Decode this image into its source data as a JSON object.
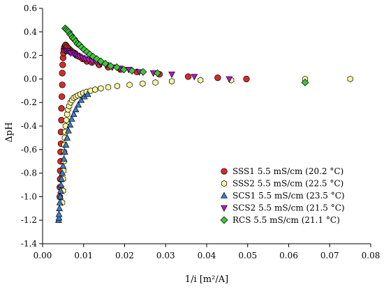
{
  "chart_data": {
    "type": "scatter",
    "title": "",
    "xlabel": "1/i [m²/A]",
    "ylabel": "ΔpH",
    "xlim": [
      0,
      0.08
    ],
    "ylim": [
      -1.4,
      0.6
    ],
    "xticks": [
      0,
      0.01,
      0.02,
      0.03,
      0.04,
      0.05,
      0.06,
      0.07,
      0.08
    ],
    "xtick_labels": [
      "0.00",
      "0.01",
      "0.02",
      "0.03",
      "0.04",
      "0.05",
      "0.06",
      "0.07",
      "0.08"
    ],
    "yticks": [
      -1.4,
      -1.2,
      -1.0,
      -0.8,
      -0.6,
      -0.4,
      -0.2,
      0.0,
      0.2,
      0.4,
      0.6
    ],
    "ytick_labels": [
      "-1.4",
      "-1.2",
      "-1.0",
      "-0.8",
      "-0.6",
      "-0.4",
      "-0.2",
      "0.0",
      "0.2",
      "0.4",
      "0.6"
    ],
    "grid": false,
    "legend_position": "bottom-right",
    "series": [
      {
        "name": "SSS1 5.5 mS/cm (20.2 °C)",
        "marker": "circle",
        "color": "#d62b27",
        "x": [
          0.0042,
          0.0042,
          0.0043,
          0.0043,
          0.0044,
          0.0044,
          0.0045,
          0.0045,
          0.0046,
          0.0046,
          0.0047,
          0.0048,
          0.0048,
          0.0049,
          0.005,
          0.0051,
          0.0052,
          0.0053,
          0.0055,
          0.0056,
          0.0058,
          0.006,
          0.0063,
          0.0066,
          0.0069,
          0.0073,
          0.0078,
          0.0083,
          0.009,
          0.0098,
          0.0108,
          0.012,
          0.0138,
          0.016,
          0.019,
          0.023,
          0.0285,
          0.0355,
          0.0427,
          0.0497
        ],
        "y": [
          -1.0,
          -0.92,
          -0.85,
          -0.78,
          -0.7,
          -0.62,
          -0.55,
          -0.45,
          -0.35,
          -0.25,
          -0.15,
          -0.05,
          0.05,
          0.12,
          0.18,
          0.22,
          0.25,
          0.27,
          0.28,
          0.29,
          0.28,
          0.27,
          0.26,
          0.25,
          0.24,
          0.23,
          0.22,
          0.2,
          0.19,
          0.17,
          0.15,
          0.14,
          0.12,
          0.1,
          0.08,
          0.06,
          0.04,
          0.02,
          0.01,
          0.0
        ]
      },
      {
        "name": "SSS2 5.5 mS/cm (22.5 °C)",
        "marker": "hexagon",
        "color": "#fbf7a2",
        "x": [
          0.0048,
          0.005,
          0.005,
          0.0051,
          0.0052,
          0.0053,
          0.0053,
          0.0054,
          0.0055,
          0.0056,
          0.0058,
          0.006,
          0.0062,
          0.0065,
          0.0068,
          0.0072,
          0.0076,
          0.0081,
          0.0086,
          0.0092,
          0.0099,
          0.0107,
          0.0117,
          0.0128,
          0.0142,
          0.016,
          0.0182,
          0.0212,
          0.0244,
          0.0275,
          0.0315,
          0.0385,
          0.046,
          0.064,
          0.075
        ],
        "y": [
          -1.05,
          -0.95,
          -0.85,
          -0.78,
          -0.7,
          -0.62,
          -0.56,
          -0.5,
          -0.45,
          -0.4,
          -0.35,
          -0.3,
          -0.26,
          -0.23,
          -0.2,
          -0.18,
          -0.16,
          -0.15,
          -0.14,
          -0.13,
          -0.12,
          -0.11,
          -0.1,
          -0.09,
          -0.08,
          -0.07,
          -0.06,
          -0.05,
          -0.04,
          -0.03,
          -0.02,
          -0.01,
          -0.01,
          0.0,
          0.0
        ]
      },
      {
        "name": "SCS1 5.5 mS/cm (23.5 °C)",
        "marker": "triangle-up",
        "color": "#3d7ec6",
        "x": [
          0.0039,
          0.004,
          0.004,
          0.0041,
          0.0042,
          0.0043,
          0.0044,
          0.0045,
          0.0046,
          0.0048,
          0.005,
          0.0052,
          0.0054,
          0.0057,
          0.006,
          0.0063,
          0.0067,
          0.0071,
          0.0076,
          0.0081,
          0.0087,
          0.0094,
          0.0102,
          0.011
        ],
        "y": [
          -1.2,
          -1.18,
          -1.15,
          -1.1,
          -1.05,
          -1.0,
          -0.95,
          -0.9,
          -0.85,
          -0.8,
          -0.74,
          -0.68,
          -0.62,
          -0.56,
          -0.5,
          -0.44,
          -0.39,
          -0.34,
          -0.3,
          -0.26,
          -0.22,
          -0.18,
          -0.15,
          -0.13
        ]
      },
      {
        "name": "SCS2 5.5 mS/cm (21.5 °C)",
        "marker": "triangle-down",
        "color": "#b519c9",
        "x": [
          0.0055,
          0.0058,
          0.0061,
          0.0065,
          0.0069,
          0.0074,
          0.0079,
          0.0084,
          0.009,
          0.0097,
          0.0104,
          0.0112,
          0.0121,
          0.0131,
          0.0142,
          0.0155,
          0.017,
          0.0188,
          0.021,
          0.0236,
          0.027,
          0.0315,
          0.037,
          0.0455
        ],
        "y": [
          0.24,
          0.24,
          0.24,
          0.23,
          0.22,
          0.22,
          0.21,
          0.2,
          0.19,
          0.18,
          0.17,
          0.16,
          0.15,
          0.14,
          0.13,
          0.12,
          0.1,
          0.09,
          0.08,
          0.06,
          0.05,
          0.04,
          0.02,
          0.0
        ]
      },
      {
        "name": "RCS 5.5 mS/cm (21.1 °C)",
        "marker": "diamond",
        "color": "#3ec43a",
        "x": [
          0.0055,
          0.0058,
          0.0061,
          0.0064,
          0.0067,
          0.007,
          0.0073,
          0.0077,
          0.0081,
          0.0085,
          0.009,
          0.0095,
          0.0101,
          0.0108,
          0.0115,
          0.0123,
          0.0132,
          0.0142,
          0.0153,
          0.0166,
          0.0181,
          0.0198,
          0.0218,
          0.0245,
          0.028,
          0.064
        ],
        "y": [
          0.43,
          0.42,
          0.41,
          0.4,
          0.38,
          0.37,
          0.35,
          0.34,
          0.32,
          0.3,
          0.29,
          0.27,
          0.25,
          0.23,
          0.21,
          0.19,
          0.17,
          0.15,
          0.13,
          0.11,
          0.1,
          0.08,
          0.07,
          0.06,
          0.05,
          -0.03
        ]
      }
    ]
  }
}
